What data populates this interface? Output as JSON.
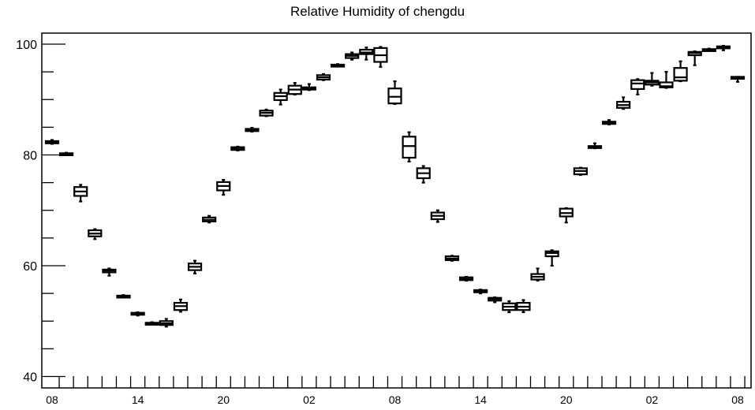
{
  "chart_data": {
    "type": "box",
    "title": "Relative Humidity of chengdu",
    "xlabel": "",
    "ylabel": "",
    "ylim": [
      39,
      102
    ],
    "y_ticks": [
      40,
      60,
      80,
      100
    ],
    "x_tick_labels": [
      "08",
      "14",
      "20",
      "02",
      "08",
      "14",
      "20",
      "02",
      "08"
    ],
    "x_tick_positions": [
      0,
      6,
      12,
      18,
      24,
      30,
      36,
      42,
      48
    ],
    "x_minor_ticks": [
      1,
      2,
      3,
      4,
      5,
      6,
      7,
      8,
      9,
      10,
      11,
      12,
      13,
      14,
      15,
      16,
      17,
      18,
      19,
      20,
      21,
      22,
      23,
      24,
      25,
      26,
      27,
      28,
      29,
      30,
      31,
      32,
      33,
      34,
      35,
      36,
      37,
      38,
      39,
      40,
      41,
      42,
      43,
      44,
      45,
      46,
      47,
      48,
      49
    ],
    "grid": false,
    "boxes": [
      {
        "x": 0,
        "min": 82.0,
        "q1": 82.1,
        "median": 82.3,
        "q3": 82.5,
        "max": 82.7
      },
      {
        "x": 1,
        "min": 80.0,
        "q1": 80.0,
        "median": 80.2,
        "q3": 80.3,
        "max": 80.4
      },
      {
        "x": 2,
        "min": 71.6,
        "q1": 72.6,
        "median": 73.4,
        "q3": 74.2,
        "max": 74.6
      },
      {
        "x": 3,
        "min": 64.8,
        "q1": 65.3,
        "median": 65.8,
        "q3": 66.4,
        "max": 66.6
      },
      {
        "x": 4,
        "min": 58.2,
        "q1": 58.8,
        "median": 59.1,
        "q3": 59.3,
        "max": 59.5
      },
      {
        "x": 5,
        "min": 54.3,
        "q1": 54.4,
        "median": 54.5,
        "q3": 54.6,
        "max": 54.7
      },
      {
        "x": 6,
        "min": 51.0,
        "q1": 51.2,
        "median": 51.4,
        "q3": 51.5,
        "max": 51.6
      },
      {
        "x": 7,
        "min": 49.5,
        "q1": 49.5,
        "median": 49.6,
        "q3": 49.7,
        "max": 49.8
      },
      {
        "x": 8,
        "min": 49.0,
        "q1": 49.3,
        "median": 49.6,
        "q3": 50.0,
        "max": 50.4
      },
      {
        "x": 9,
        "min": 51.7,
        "q1": 52.0,
        "median": 52.7,
        "q3": 53.3,
        "max": 53.9
      },
      {
        "x": 10,
        "min": 58.6,
        "q1": 59.2,
        "median": 59.8,
        "q3": 60.4,
        "max": 60.9
      },
      {
        "x": 11,
        "min": 67.8,
        "q1": 68.0,
        "median": 68.3,
        "q3": 68.7,
        "max": 69.0
      },
      {
        "x": 12,
        "min": 72.8,
        "q1": 73.6,
        "median": 74.4,
        "q3": 75.1,
        "max": 75.5
      },
      {
        "x": 13,
        "min": 80.8,
        "q1": 80.9,
        "median": 81.2,
        "q3": 81.4,
        "max": 81.5
      },
      {
        "x": 14,
        "min": 84.2,
        "q1": 84.3,
        "median": 84.5,
        "q3": 84.7,
        "max": 84.9
      },
      {
        "x": 15,
        "min": 87.0,
        "q1": 87.1,
        "median": 87.6,
        "q3": 88.0,
        "max": 88.2
      },
      {
        "x": 16,
        "min": 89.1,
        "q1": 89.9,
        "median": 90.6,
        "q3": 91.2,
        "max": 91.8
      },
      {
        "x": 17,
        "min": 90.9,
        "q1": 91.0,
        "median": 91.8,
        "q3": 92.5,
        "max": 93.0
      },
      {
        "x": 18,
        "min": 91.7,
        "q1": 91.8,
        "median": 92.0,
        "q3": 92.2,
        "max": 92.8
      },
      {
        "x": 19,
        "min": 93.5,
        "q1": 93.6,
        "median": 94.0,
        "q3": 94.4,
        "max": 94.6
      },
      {
        "x": 20,
        "min": 96.1,
        "q1": 96.1,
        "median": 96.2,
        "q3": 96.3,
        "max": 96.4
      },
      {
        "x": 21,
        "min": 97.2,
        "q1": 97.5,
        "median": 97.9,
        "q3": 98.2,
        "max": 98.5
      },
      {
        "x": 22,
        "min": 97.2,
        "q1": 98.2,
        "median": 98.5,
        "q3": 99.0,
        "max": 99.4
      },
      {
        "x": 23,
        "min": 95.9,
        "q1": 96.8,
        "median": 98.0,
        "q3": 99.3,
        "max": 99.5
      },
      {
        "x": 24,
        "min": 89.2,
        "q1": 89.3,
        "median": 90.5,
        "q3": 92.0,
        "max": 93.3
      },
      {
        "x": 25,
        "min": 78.8,
        "q1": 79.5,
        "median": 81.6,
        "q3": 83.3,
        "max": 84.1
      },
      {
        "x": 26,
        "min": 75.0,
        "q1": 75.8,
        "median": 76.7,
        "q3": 77.6,
        "max": 78.0
      },
      {
        "x": 27,
        "min": 67.9,
        "q1": 68.4,
        "median": 69.0,
        "q3": 69.6,
        "max": 70.0
      },
      {
        "x": 28,
        "min": 60.9,
        "q1": 61.0,
        "median": 61.3,
        "q3": 61.7,
        "max": 61.8
      },
      {
        "x": 29,
        "min": 57.3,
        "q1": 57.4,
        "median": 57.6,
        "q3": 57.9,
        "max": 58.0
      },
      {
        "x": 30,
        "min": 55.0,
        "q1": 55.2,
        "median": 55.4,
        "q3": 55.6,
        "max": 55.7
      },
      {
        "x": 31,
        "min": 53.4,
        "q1": 53.7,
        "median": 54.0,
        "q3": 54.2,
        "max": 54.3
      },
      {
        "x": 32,
        "min": 51.6,
        "q1": 52.0,
        "median": 52.6,
        "q3": 53.2,
        "max": 53.6
      },
      {
        "x": 33,
        "min": 51.6,
        "q1": 52.0,
        "median": 52.6,
        "q3": 53.3,
        "max": 53.8
      },
      {
        "x": 34,
        "min": 57.3,
        "q1": 57.5,
        "median": 58.0,
        "q3": 58.5,
        "max": 59.5
      },
      {
        "x": 35,
        "min": 60.0,
        "q1": 61.7,
        "median": 62.3,
        "q3": 62.6,
        "max": 62.8
      },
      {
        "x": 36,
        "min": 67.8,
        "q1": 68.9,
        "median": 69.5,
        "q3": 70.3,
        "max": 70.4
      },
      {
        "x": 37,
        "min": 76.4,
        "q1": 76.5,
        "median": 77.1,
        "q3": 77.6,
        "max": 77.7
      },
      {
        "x": 38,
        "min": 81.2,
        "q1": 81.3,
        "median": 81.4,
        "q3": 81.6,
        "max": 82.1
      },
      {
        "x": 39,
        "min": 85.5,
        "q1": 85.6,
        "median": 85.8,
        "q3": 86.0,
        "max": 86.3
      },
      {
        "x": 40,
        "min": 88.3,
        "q1": 88.5,
        "median": 89.0,
        "q3": 89.6,
        "max": 90.4
      },
      {
        "x": 41,
        "min": 90.9,
        "q1": 91.9,
        "median": 92.9,
        "q3": 93.5,
        "max": 93.7
      },
      {
        "x": 42,
        "min": 92.5,
        "q1": 92.7,
        "median": 93.1,
        "q3": 93.4,
        "max": 94.8
      },
      {
        "x": 43,
        "min": 92.1,
        "q1": 92.2,
        "median": 92.4,
        "q3": 93.1,
        "max": 95.0
      },
      {
        "x": 44,
        "min": 93.3,
        "q1": 93.4,
        "median": 94.0,
        "q3": 95.7,
        "max": 96.9
      },
      {
        "x": 45,
        "min": 96.2,
        "q1": 98.0,
        "median": 98.4,
        "q3": 98.6,
        "max": 98.7
      },
      {
        "x": 46,
        "min": 98.8,
        "q1": 98.9,
        "median": 99.0,
        "q3": 99.1,
        "max": 99.2
      },
      {
        "x": 47,
        "min": 98.9,
        "q1": 99.3,
        "median": 99.4,
        "q3": 99.6,
        "max": 99.7
      },
      {
        "x": 48,
        "min": 93.2,
        "q1": 93.8,
        "median": 94.0,
        "q3": 94.1,
        "max": 94.1
      }
    ]
  }
}
